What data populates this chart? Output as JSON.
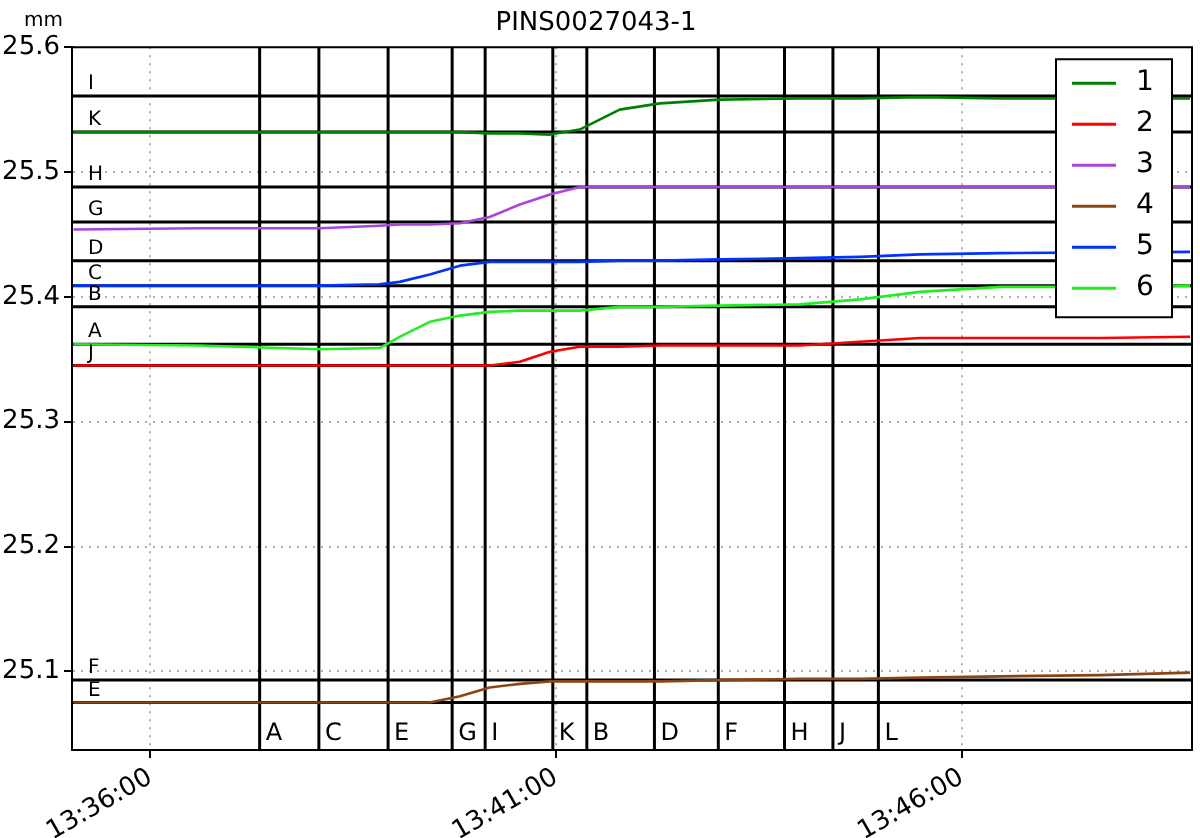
{
  "chart_data": {
    "type": "line",
    "title": "PINS0027043-1",
    "ylabel": "mm",
    "x": [
      13.5842,
      13.6101,
      13.6348,
      13.6471,
      13.6512,
      13.6574,
      13.6636,
      13.6697,
      13.6759,
      13.6821,
      13.6882,
      13.6964,
      13.7047,
      13.717,
      13.7334,
      13.7458,
      13.7581,
      13.7746,
      13.7951,
      13.8136
    ],
    "series": [
      {
        "name": "1",
        "color": "#008000",
        "values": [
          25.532,
          25.532,
          25.532,
          25.532,
          25.532,
          25.532,
          25.532,
          25.531,
          25.531,
          25.53,
          25.534,
          25.55,
          25.555,
          25.558,
          25.559,
          25.559,
          25.56,
          25.559,
          null,
          25.559
        ]
      },
      {
        "name": "2",
        "color": "#ff0000",
        "values": [
          25.345,
          25.345,
          25.345,
          25.345,
          25.345,
          25.345,
          25.345,
          25.345,
          25.348,
          25.356,
          25.36,
          25.36,
          25.361,
          25.361,
          25.361,
          25.364,
          25.367,
          25.367,
          25.367,
          25.368
        ]
      },
      {
        "name": "3",
        "color": "#aa44dd",
        "values": [
          25.454,
          25.455,
          25.455,
          25.457,
          25.458,
          25.458,
          25.459,
          25.464,
          25.474,
          25.482,
          25.488,
          25.488,
          25.488,
          25.488,
          25.488,
          25.488,
          25.488,
          25.488,
          null,
          25.488
        ]
      },
      {
        "name": "4",
        "color": "#8b4513",
        "values": [
          25.075,
          25.075,
          25.075,
          25.075,
          25.075,
          25.075,
          25.08,
          25.087,
          25.09,
          25.092,
          25.092,
          25.092,
          25.092,
          25.093,
          25.094,
          25.094,
          25.095,
          25.096,
          25.097,
          25.099
        ]
      },
      {
        "name": "5",
        "color": "#0033ff",
        "values": [
          25.409,
          25.409,
          25.409,
          25.41,
          25.412,
          25.418,
          25.425,
          25.428,
          25.428,
          25.428,
          25.428,
          25.429,
          25.429,
          25.43,
          25.431,
          25.432,
          25.434,
          25.435,
          null,
          25.436
        ]
      },
      {
        "name": "6",
        "color": "#22ee22",
        "values": [
          25.362,
          25.361,
          25.358,
          25.359,
          25.368,
          25.38,
          25.385,
          25.388,
          25.389,
          25.389,
          25.389,
          25.392,
          25.392,
          25.393,
          25.394,
          25.398,
          25.404,
          25.408,
          25.408,
          25.409
        ]
      }
    ],
    "xlim": [
      13.5839,
      13.814
    ],
    "xticks": [
      {
        "value": 13.6,
        "label": "13:36:00"
      },
      {
        "value": 13.683333,
        "label": "13:41:00"
      },
      {
        "value": 13.766667,
        "label": "13:46:00"
      }
    ],
    "ylim": [
      25.037,
      25.6
    ],
    "yticks": [
      25.1,
      25.2,
      25.3,
      25.4,
      25.5,
      25.6
    ],
    "grid": true,
    "legend": "top right",
    "marker": "none",
    "line_style": "solid",
    "ref_lines": [
      {
        "axis": "y",
        "value": 25.561,
        "label": "I",
        "color": "#000000"
      },
      {
        "axis": "y",
        "value": 25.532,
        "label": "K",
        "color": "#000000"
      },
      {
        "axis": "y",
        "value": 25.488,
        "label": "H",
        "color": "#000000"
      },
      {
        "axis": "y",
        "value": 25.46,
        "label": "G",
        "color": "#000000"
      },
      {
        "axis": "y",
        "value": 25.429,
        "label": "D",
        "color": "#000000"
      },
      {
        "axis": "y",
        "value": 25.409,
        "label": "C",
        "color": "#000000"
      },
      {
        "axis": "y",
        "value": 25.392,
        "label": "B",
        "color": "#000000"
      },
      {
        "axis": "y",
        "value": 25.362,
        "label": "A",
        "color": "#000000"
      },
      {
        "axis": "y",
        "value": 25.345,
        "label": "J",
        "color": "#000000"
      },
      {
        "axis": "y",
        "value": 25.093,
        "label": "F",
        "color": "#000000"
      },
      {
        "axis": "y",
        "value": 25.075,
        "label": "E",
        "color": "#000000"
      },
      {
        "axis": "x",
        "value": 13.62245,
        "label": "A",
        "color": "#000000"
      },
      {
        "axis": "x",
        "value": 13.63462,
        "label": "C",
        "color": "#000000"
      },
      {
        "axis": "x",
        "value": 13.64884,
        "label": "E",
        "color": "#000000"
      },
      {
        "axis": "x",
        "value": 13.662,
        "label": "G",
        "color": "#000000"
      },
      {
        "axis": "x",
        "value": 13.66878,
        "label": "I",
        "color": "#000000"
      },
      {
        "axis": "x",
        "value": 13.68268,
        "label": "K",
        "color": "#000000"
      },
      {
        "axis": "x",
        "value": 13.68967,
        "label": "B",
        "color": "#000000"
      },
      {
        "axis": "x",
        "value": 13.70356,
        "label": "D",
        "color": "#000000"
      },
      {
        "axis": "x",
        "value": 13.71668,
        "label": "F",
        "color": "#000000"
      },
      {
        "axis": "x",
        "value": 13.73028,
        "label": "H",
        "color": "#000000"
      },
      {
        "axis": "x",
        "value": 13.74023,
        "label": "J",
        "color": "#000000"
      },
      {
        "axis": "x",
        "value": 13.74957,
        "label": "L",
        "color": "#000000"
      }
    ]
  }
}
